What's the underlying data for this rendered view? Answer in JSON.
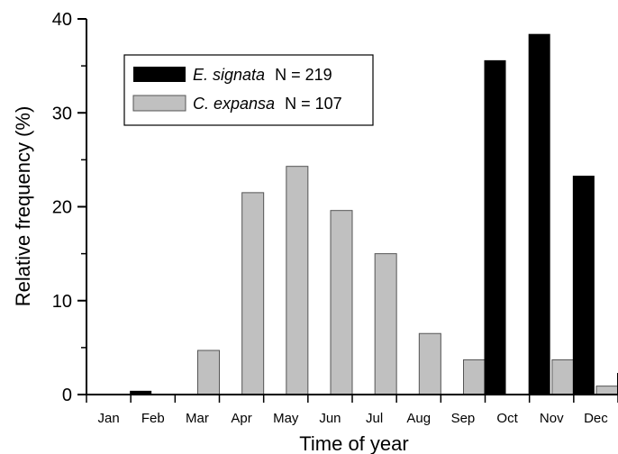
{
  "chart_data": {
    "type": "bar",
    "xlabel": "Time of year",
    "ylabel": "Relative frequency (%)",
    "ylim": [
      0,
      40
    ],
    "yticks": [
      "0",
      "10",
      "20",
      "30",
      "40"
    ],
    "categories": [
      "Jan",
      "Feb",
      "Mar",
      "Apr",
      "May",
      "Jun",
      "Jul",
      "Aug",
      "Sep",
      "Oct",
      "Nov",
      "Dec"
    ],
    "series": [
      {
        "name": "C. expansa",
        "n_label": "N = 107",
        "color": "#c0c0c0",
        "values": [
          0,
          0,
          4.7,
          21.5,
          24.3,
          19.6,
          15.0,
          6.5,
          3.7,
          0,
          3.7,
          0.9
        ]
      },
      {
        "name": "E. signata",
        "n_label": "N = 219",
        "color": "#000000",
        "values": [
          0.4,
          0,
          0,
          0,
          0,
          0,
          0,
          0,
          35.6,
          38.4,
          23.3,
          2.3
        ]
      }
    ],
    "legend": {
      "position": "top-left",
      "order": [
        "E. signata",
        "C. expansa"
      ]
    },
    "grid": false
  }
}
